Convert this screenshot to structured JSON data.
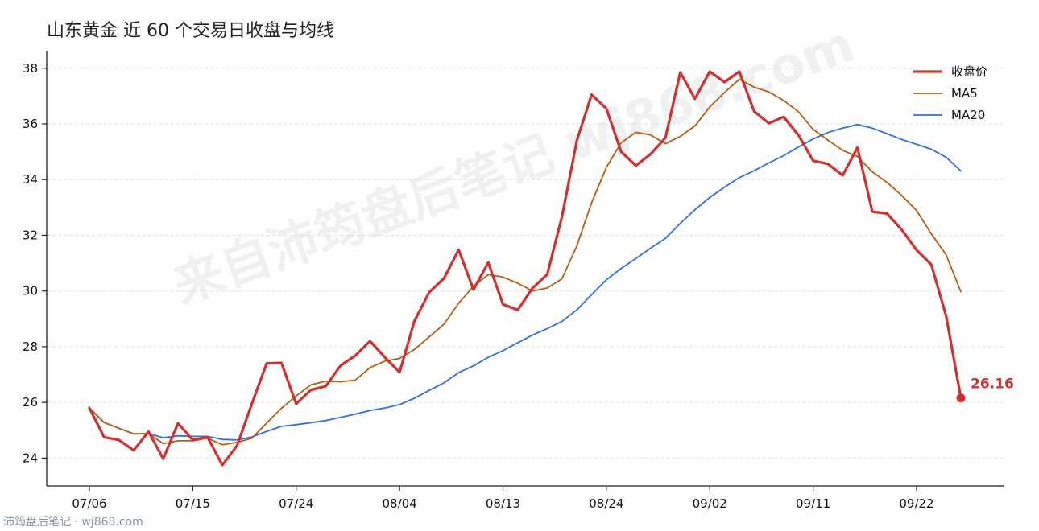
{
  "title": "山东黄金 近 60 个交易日收盘与均线",
  "watermark": "来自沛筠盘后笔记 wj868.com",
  "footer": "沛筠盘后笔记 · wj868.com",
  "colors": {
    "close": "#d32f2f",
    "ma5": "#b85c12",
    "ma20": "#2f6fdf",
    "grid": "#dddddd",
    "axis": "#222222"
  },
  "chart_data": {
    "type": "line",
    "title": "山东黄金 近 60 个交易日收盘与均线",
    "xlabel": "",
    "ylabel": "",
    "ylim": [
      23,
      38.6
    ],
    "yticks": [
      24,
      26,
      28,
      30,
      32,
      34,
      36,
      38
    ],
    "grid": "horizontal",
    "legend_position": "top-right",
    "xtick_labels": [
      {
        "index": 0,
        "label": "07/06"
      },
      {
        "index": 7,
        "label": "07/15"
      },
      {
        "index": 14,
        "label": "07/24"
      },
      {
        "index": 21,
        "label": "08/04"
      },
      {
        "index": 28,
        "label": "08/13"
      },
      {
        "index": 35,
        "label": "08/24"
      },
      {
        "index": 42,
        "label": "09/02"
      },
      {
        "index": 49,
        "label": "09/11"
      },
      {
        "index": 56,
        "label": "09/22"
      }
    ],
    "last_label": "26.16",
    "series": [
      {
        "name": "收盘价",
        "key": "close",
        "values": [
          25.8,
          24.75,
          24.65,
          24.28,
          24.95,
          23.98,
          25.25,
          24.65,
          24.75,
          23.75,
          24.45,
          25.95,
          27.4,
          27.42,
          25.95,
          26.45,
          26.58,
          27.32,
          27.68,
          28.2,
          27.62,
          27.08,
          28.92,
          29.95,
          30.45,
          31.48,
          30.05,
          31.02,
          29.52,
          29.32,
          30.1,
          30.6,
          32.68,
          35.4,
          37.05,
          36.55,
          35.0,
          34.5,
          34.92,
          35.5,
          37.85,
          36.9,
          37.88,
          37.5,
          37.88,
          36.45,
          36.02,
          36.25,
          35.6,
          34.68,
          34.56,
          34.15,
          35.15,
          32.85,
          32.78,
          32.2,
          31.47,
          30.95,
          29.1,
          26.16
        ]
      },
      {
        "name": "MA5",
        "key": "ma5",
        "values": [
          25.8,
          25.28,
          25.07,
          24.87,
          24.88,
          24.52,
          24.62,
          24.62,
          24.72,
          24.48,
          24.57,
          24.71,
          25.26,
          25.79,
          26.23,
          26.63,
          26.76,
          26.74,
          26.8,
          27.25,
          27.48,
          27.58,
          27.9,
          28.35,
          28.8,
          29.56,
          30.17,
          30.59,
          30.5,
          30.28,
          30.0,
          30.11,
          30.44,
          31.62,
          33.17,
          34.44,
          35.32,
          35.7,
          35.6,
          35.29,
          35.55,
          35.93,
          36.61,
          37.13,
          37.6,
          37.32,
          37.15,
          36.84,
          36.44,
          35.8,
          35.42,
          35.05,
          34.83,
          34.28,
          33.9,
          33.43,
          32.89,
          32.05,
          31.3,
          29.97
        ]
      },
      {
        "name": "MA20",
        "key": "ma20",
        "values": [
          25.8,
          25.28,
          25.07,
          24.87,
          24.88,
          24.73,
          24.8,
          24.78,
          24.78,
          24.67,
          24.65,
          24.76,
          24.96,
          25.14,
          25.2,
          25.27,
          25.35,
          25.46,
          25.58,
          25.71,
          25.8,
          25.92,
          26.15,
          26.43,
          26.7,
          27.07,
          27.31,
          27.62,
          27.86,
          28.14,
          28.42,
          28.65,
          28.91,
          29.32,
          29.87,
          30.4,
          30.81,
          31.17,
          31.54,
          31.89,
          32.43,
          32.92,
          33.36,
          33.73,
          34.07,
          34.32,
          34.6,
          34.86,
          35.17,
          35.46,
          35.69,
          35.85,
          35.98,
          35.85,
          35.65,
          35.44,
          35.27,
          35.09,
          34.8,
          34.31
        ]
      }
    ]
  }
}
